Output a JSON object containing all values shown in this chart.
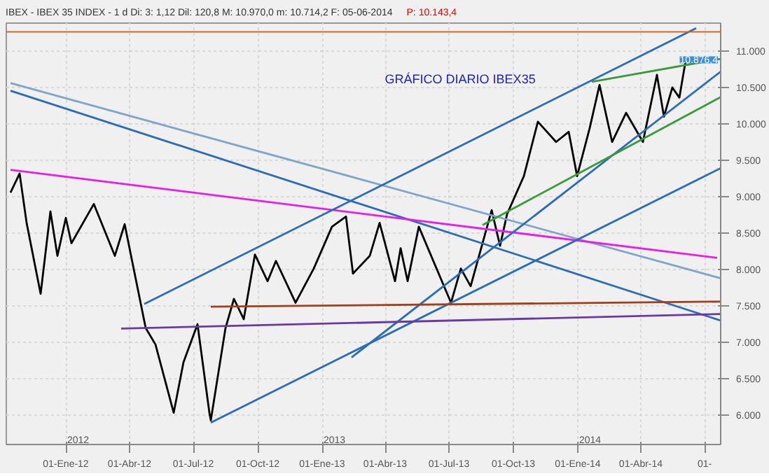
{
  "chart_data": {
    "type": "line",
    "title": "IBEX - IBEX 35 INDEX - 1 d Di: 3: 1,12 Dil: 120,8 M: 10.970,0 m: 10.714,2 F: 05-06-2014",
    "subtitle": "GRÁFICO DIARIO IBEX35",
    "annotations": [
      "P: 10.143,4",
      "2012",
      "2013",
      "2014",
      "10.876,4"
    ],
    "xlim": [
      "2011-10-08",
      "2014-07-24"
    ],
    "ylim": [
      5600,
      11380
    ],
    "xticks": [
      {
        "value": "2012-01-01",
        "label": "01-Ene-12"
      },
      {
        "value": "2012-04-01",
        "label": "01-Abr-12"
      },
      {
        "value": "2012-07-01",
        "label": "01-Jul-12"
      },
      {
        "value": "2012-10-01",
        "label": "01-Oct-12"
      },
      {
        "value": "2013-01-01",
        "label": "01-Ene-13"
      },
      {
        "value": "2013-04-01",
        "label": "01-Abr-13"
      },
      {
        "value": "2013-07-01",
        "label": "01-Jul-13"
      },
      {
        "value": "2013-10-01",
        "label": "01-Oct-13"
      },
      {
        "value": "2014-01-01",
        "label": "01-Ene-14"
      },
      {
        "value": "2014-04-01",
        "label": "01-Abr-14"
      },
      {
        "value": "2014-07-01",
        "label": "01-"
      }
    ],
    "yticks": [
      {
        "value": 6000,
        "label": "6.000"
      },
      {
        "value": 6500,
        "label": "6.500"
      },
      {
        "value": 7000,
        "label": "7.000"
      },
      {
        "value": 7500,
        "label": "7.500"
      },
      {
        "value": 8000,
        "label": "8.000"
      },
      {
        "value": 8500,
        "label": "8.500"
      },
      {
        "value": 9000,
        "label": "9.000"
      },
      {
        "value": 9500,
        "label": "9.500"
      },
      {
        "value": 10000,
        "label": "10.000"
      },
      {
        "value": 10500,
        "label": "10.500"
      },
      {
        "value": 11000,
        "label": "11.000"
      }
    ],
    "grid": true,
    "ref_lines": [
      {
        "axis": "y",
        "value": 11260,
        "color": "#d2691e"
      }
    ],
    "series": [
      {
        "color": "#000000",
        "x": [
          "2011-10-14",
          "2011-10-27",
          "2011-11-06",
          "2011-11-26",
          "2011-12-10",
          "2011-12-20",
          "2012-01-01",
          "2012-01-09",
          "2012-02-10",
          "2012-03-11",
          "2012-03-25",
          "2012-04-24",
          "2012-05-08",
          "2012-06-03",
          "2012-06-17",
          "2012-07-07",
          "2012-07-24",
          "2012-07-26",
          "2012-08-16",
          "2012-08-28",
          "2012-09-11",
          "2012-09-27",
          "2012-10-15",
          "2012-10-27",
          "2012-11-24",
          "2012-12-20",
          "2013-01-15",
          "2013-02-04",
          "2013-02-14",
          "2013-03-10",
          "2013-03-24",
          "2013-04-15",
          "2013-04-23",
          "2013-05-03",
          "2013-05-19",
          "2013-07-04",
          "2013-07-18",
          "2013-08-01",
          "2013-08-31",
          "2013-09-12",
          "2013-09-22",
          "2013-10-16",
          "2013-11-05",
          "2013-12-01",
          "2013-12-19",
          "2013-12-31",
          "2014-01-18",
          "2014-02-01",
          "2014-02-19",
          "2014-03-11",
          "2014-04-04",
          "2014-04-24",
          "2014-05-04",
          "2014-05-16",
          "2014-05-26",
          "2014-06-03",
          "2014-06-05"
        ],
        "values": [
          9056,
          9316,
          8640,
          7667,
          8795,
          8188,
          8708,
          8361,
          8899,
          8188,
          8622,
          7198,
          6972,
          6035,
          6729,
          7250,
          6035,
          5931,
          7198,
          7597,
          7319,
          8205,
          7840,
          8118,
          7545,
          8014,
          8587,
          8726,
          7945,
          8188,
          8640,
          7840,
          8292,
          7840,
          8587,
          7545,
          8014,
          7771,
          8813,
          8326,
          8760,
          9281,
          10028,
          9750,
          9889,
          9281,
          9941,
          10531,
          9750,
          10149,
          9750,
          10670,
          10097,
          10497,
          10358,
          10809,
          10876
        ]
      },
      {
        "color": "#7fa6c8",
        "x": [
          "2011-10-14",
          "2014-07-24"
        ],
        "values": [
          10557,
          7880
        ]
      },
      {
        "color": "#2a6db5",
        "x": [
          "2011-10-14",
          "2014-07-24"
        ],
        "values": [
          10452,
          7300
        ]
      },
      {
        "color": "#e61ee6",
        "x": [
          "2011-10-14",
          "2014-07-19"
        ],
        "values": [
          9367,
          8160
        ]
      },
      {
        "color": "#2a6db5",
        "x": [
          "2012-04-22",
          "2014-06-19"
        ],
        "values": [
          7527,
          11310
        ]
      },
      {
        "color": "#2a6db5",
        "x": [
          "2012-07-26",
          "2014-07-24"
        ],
        "values": [
          5900,
          9390
        ]
      },
      {
        "color": "#2a6db5",
        "x": [
          "2013-02-12",
          "2014-07-24"
        ],
        "values": [
          6795,
          10715
        ]
      },
      {
        "color": "#3a9a3a",
        "x": [
          "2014-01-21",
          "2014-07-24"
        ],
        "values": [
          10575,
          10890
        ]
      },
      {
        "color": "#3a9a3a",
        "x": [
          "2013-08-18",
          "2014-07-24"
        ],
        "values": [
          8610,
          10365
        ]
      },
      {
        "color": "#a0401a",
        "x": [
          "2012-07-26",
          "2014-07-24"
        ],
        "values": [
          7490,
          7560
        ]
      },
      {
        "color": "#6a3aa0",
        "x": [
          "2012-03-20",
          "2014-07-24"
        ],
        "values": [
          7190,
          7390
        ]
      }
    ]
  }
}
